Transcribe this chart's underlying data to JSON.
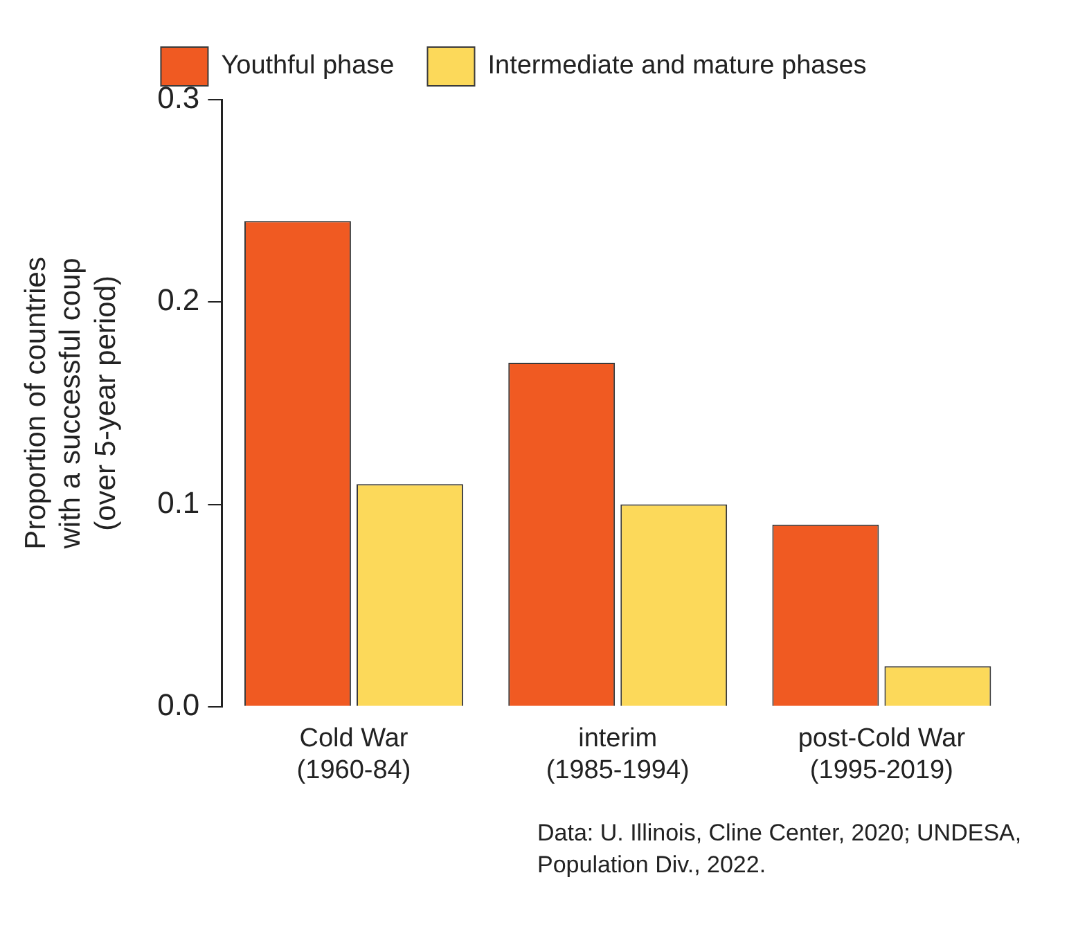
{
  "chart_data": {
    "type": "bar",
    "categories": [
      "Cold War\n(1960-84)",
      "interim\n(1985-1994)",
      "post-Cold War\n(1995-2019)"
    ],
    "ylabel": "Proportion of countries\nwith a successful coup\n(over 5-year period)",
    "series": [
      {
        "name": "Youthful phase",
        "color": "#f05a22",
        "values": [
          0.24,
          0.17,
          0.09
        ]
      },
      {
        "name": "Intermediate and mature phases",
        "color": "#fcd95a",
        "values": [
          0.11,
          0.1,
          0.02
        ]
      }
    ],
    "ylim": [
      0,
      0.3
    ],
    "yticks": [
      {
        "value": 0,
        "label": "0.0"
      },
      0.1,
      0.2,
      0.3
    ],
    "grid": false,
    "legend": "top",
    "annotations": [
      "Data: U. Illinois, Cline Center, 2020; UNDESA, Population Div., 2022."
    ]
  }
}
